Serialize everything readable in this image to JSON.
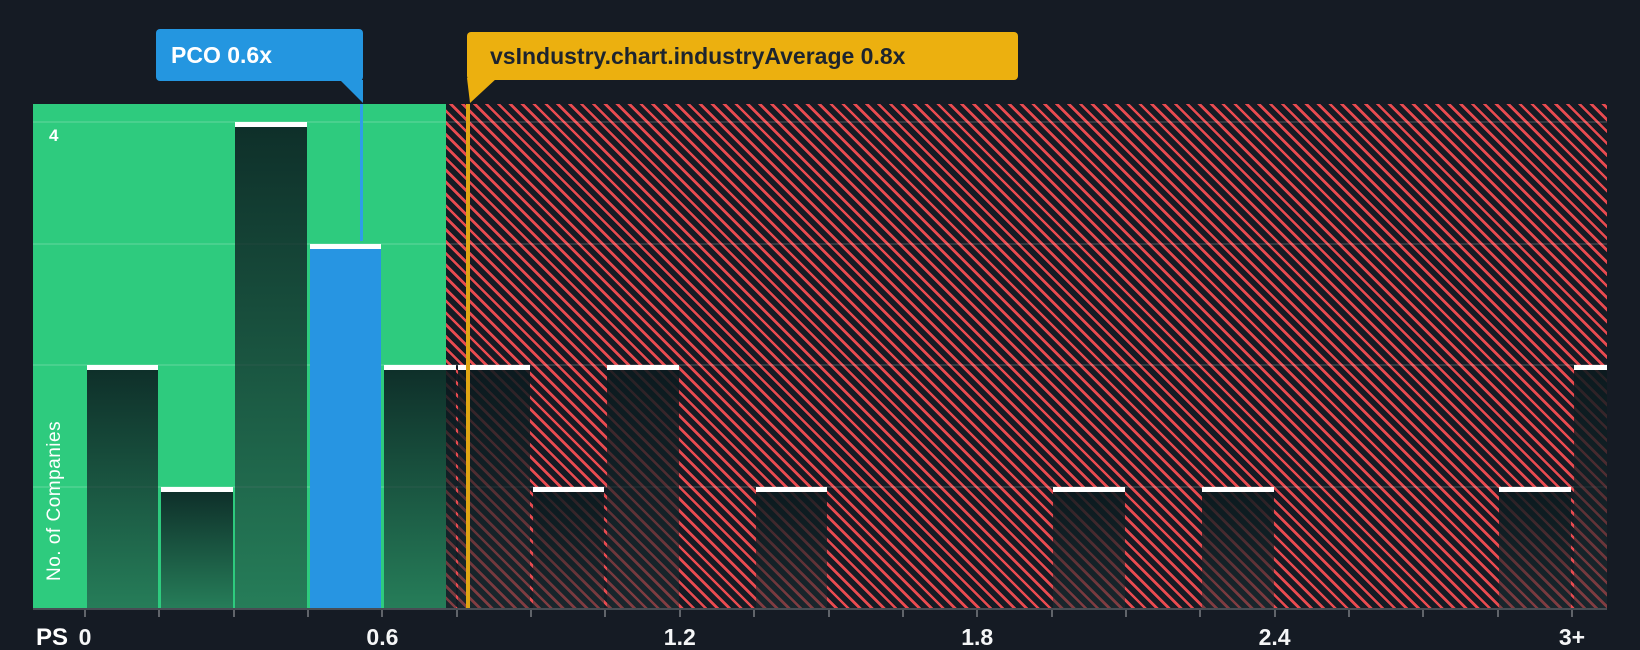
{
  "axis": {
    "name": "PS",
    "ylabel": "No. of Companies",
    "ymax_label": "4"
  },
  "tooltips": {
    "pco": {
      "label": "PCO 0.6x"
    },
    "industry": {
      "label": "vsIndustry.chart.industryAverage 0.8x"
    }
  },
  "colors": {
    "background": "#151b24",
    "below_average_zone": "#2ecb7e",
    "above_average_hatch": "#e84b50",
    "highlight_bar": "#2795e2",
    "pco_tooltip": "#2496e0",
    "industry_tooltip": "#ecb00f",
    "industry_line": "#dfa513",
    "pco_line": "#2e9ee8"
  },
  "chart_data": {
    "type": "bar",
    "title": "Price to Sales ratio histogram vs industry",
    "xlabel": "PS",
    "ylabel": "No. of Companies",
    "bin_width": 0.15,
    "x_range": [
      0,
      3.17
    ],
    "ylim": [
      0,
      4.15
    ],
    "grid": "horizontal, values 1-4",
    "legend_position": "none",
    "x_tick_step": 0.15,
    "x_tick_labels": [
      {
        "value": 0.0,
        "label": "0"
      },
      {
        "value": 0.6,
        "label": "0.6"
      },
      {
        "value": 1.2,
        "label": "1.2"
      },
      {
        "value": 1.8,
        "label": "1.8"
      },
      {
        "value": 2.4,
        "label": "2.4"
      },
      {
        "value": 3.0,
        "label": "3+"
      }
    ],
    "bins": [
      {
        "x_start": 0.0,
        "count": 2
      },
      {
        "x_start": 0.15,
        "count": 1
      },
      {
        "x_start": 0.3,
        "count": 4
      },
      {
        "x_start": 0.45,
        "count": 3
      },
      {
        "x_start": 0.6,
        "count": 2
      },
      {
        "x_start": 0.75,
        "count": 2
      },
      {
        "x_start": 0.9,
        "count": 1
      },
      {
        "x_start": 1.05,
        "count": 2
      },
      {
        "x_start": 1.2,
        "count": 0
      },
      {
        "x_start": 1.35,
        "count": 1
      },
      {
        "x_start": 1.5,
        "count": 0
      },
      {
        "x_start": 1.65,
        "count": 0
      },
      {
        "x_start": 1.8,
        "count": 0
      },
      {
        "x_start": 1.95,
        "count": 1
      },
      {
        "x_start": 2.1,
        "count": 0
      },
      {
        "x_start": 2.25,
        "count": 1
      },
      {
        "x_start": 2.4,
        "count": 0
      },
      {
        "x_start": 2.55,
        "count": 0
      },
      {
        "x_start": 2.7,
        "count": 0
      },
      {
        "x_start": 2.85,
        "count": 1
      },
      {
        "x_start": 3.0,
        "count": 2
      }
    ],
    "highlight_bin_index": 3,
    "company_marker": {
      "label": "PCO 0.6x",
      "x": 0.557
    },
    "industry_average_marker": {
      "label": "vsIndustry.chart.industryAverage 0.8x",
      "x": 0.772
    },
    "below_average_region": [
      0,
      0.835
    ],
    "above_average_region": [
      0.835,
      3.17
    ]
  }
}
